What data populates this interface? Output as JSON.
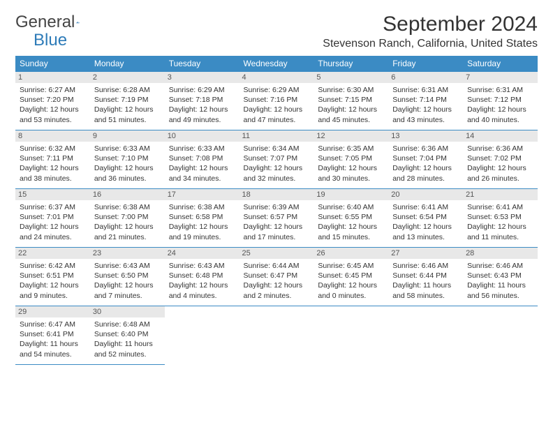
{
  "logo": {
    "text_general": "General",
    "text_blue": "Blue",
    "arrow_color": "#2d7bb8"
  },
  "title": "September 2024",
  "location": "Stevenson Ranch, California, United States",
  "header_bg": "#3b8bc4",
  "header_fg": "#ffffff",
  "daynum_bg": "#e8e8e8",
  "border_color": "#3b8bc4",
  "day_headers": [
    "Sunday",
    "Monday",
    "Tuesday",
    "Wednesday",
    "Thursday",
    "Friday",
    "Saturday"
  ],
  "days": [
    {
      "n": 1,
      "sr": "6:27 AM",
      "ss": "7:20 PM",
      "dh": 12,
      "dm": 53
    },
    {
      "n": 2,
      "sr": "6:28 AM",
      "ss": "7:19 PM",
      "dh": 12,
      "dm": 51
    },
    {
      "n": 3,
      "sr": "6:29 AM",
      "ss": "7:18 PM",
      "dh": 12,
      "dm": 49
    },
    {
      "n": 4,
      "sr": "6:29 AM",
      "ss": "7:16 PM",
      "dh": 12,
      "dm": 47
    },
    {
      "n": 5,
      "sr": "6:30 AM",
      "ss": "7:15 PM",
      "dh": 12,
      "dm": 45
    },
    {
      "n": 6,
      "sr": "6:31 AM",
      "ss": "7:14 PM",
      "dh": 12,
      "dm": 43
    },
    {
      "n": 7,
      "sr": "6:31 AM",
      "ss": "7:12 PM",
      "dh": 12,
      "dm": 40
    },
    {
      "n": 8,
      "sr": "6:32 AM",
      "ss": "7:11 PM",
      "dh": 12,
      "dm": 38
    },
    {
      "n": 9,
      "sr": "6:33 AM",
      "ss": "7:10 PM",
      "dh": 12,
      "dm": 36
    },
    {
      "n": 10,
      "sr": "6:33 AM",
      "ss": "7:08 PM",
      "dh": 12,
      "dm": 34
    },
    {
      "n": 11,
      "sr": "6:34 AM",
      "ss": "7:07 PM",
      "dh": 12,
      "dm": 32
    },
    {
      "n": 12,
      "sr": "6:35 AM",
      "ss": "7:05 PM",
      "dh": 12,
      "dm": 30
    },
    {
      "n": 13,
      "sr": "6:36 AM",
      "ss": "7:04 PM",
      "dh": 12,
      "dm": 28
    },
    {
      "n": 14,
      "sr": "6:36 AM",
      "ss": "7:02 PM",
      "dh": 12,
      "dm": 26
    },
    {
      "n": 15,
      "sr": "6:37 AM",
      "ss": "7:01 PM",
      "dh": 12,
      "dm": 24
    },
    {
      "n": 16,
      "sr": "6:38 AM",
      "ss": "7:00 PM",
      "dh": 12,
      "dm": 21
    },
    {
      "n": 17,
      "sr": "6:38 AM",
      "ss": "6:58 PM",
      "dh": 12,
      "dm": 19
    },
    {
      "n": 18,
      "sr": "6:39 AM",
      "ss": "6:57 PM",
      "dh": 12,
      "dm": 17
    },
    {
      "n": 19,
      "sr": "6:40 AM",
      "ss": "6:55 PM",
      "dh": 12,
      "dm": 15
    },
    {
      "n": 20,
      "sr": "6:41 AM",
      "ss": "6:54 PM",
      "dh": 12,
      "dm": 13
    },
    {
      "n": 21,
      "sr": "6:41 AM",
      "ss": "6:53 PM",
      "dh": 12,
      "dm": 11
    },
    {
      "n": 22,
      "sr": "6:42 AM",
      "ss": "6:51 PM",
      "dh": 12,
      "dm": 9
    },
    {
      "n": 23,
      "sr": "6:43 AM",
      "ss": "6:50 PM",
      "dh": 12,
      "dm": 7
    },
    {
      "n": 24,
      "sr": "6:43 AM",
      "ss": "6:48 PM",
      "dh": 12,
      "dm": 4
    },
    {
      "n": 25,
      "sr": "6:44 AM",
      "ss": "6:47 PM",
      "dh": 12,
      "dm": 2
    },
    {
      "n": 26,
      "sr": "6:45 AM",
      "ss": "6:45 PM",
      "dh": 12,
      "dm": 0
    },
    {
      "n": 27,
      "sr": "6:46 AM",
      "ss": "6:44 PM",
      "dh": 11,
      "dm": 58
    },
    {
      "n": 28,
      "sr": "6:46 AM",
      "ss": "6:43 PM",
      "dh": 11,
      "dm": 56
    },
    {
      "n": 29,
      "sr": "6:47 AM",
      "ss": "6:41 PM",
      "dh": 11,
      "dm": 54
    },
    {
      "n": 30,
      "sr": "6:48 AM",
      "ss": "6:40 PM",
      "dh": 11,
      "dm": 52
    }
  ],
  "labels": {
    "sunrise": "Sunrise:",
    "sunset": "Sunset:",
    "daylight": "Daylight:",
    "hours_word": "hours",
    "and_word": "and",
    "minutes_word": "minutes."
  },
  "first_day_col": 0,
  "total_cells": 35
}
